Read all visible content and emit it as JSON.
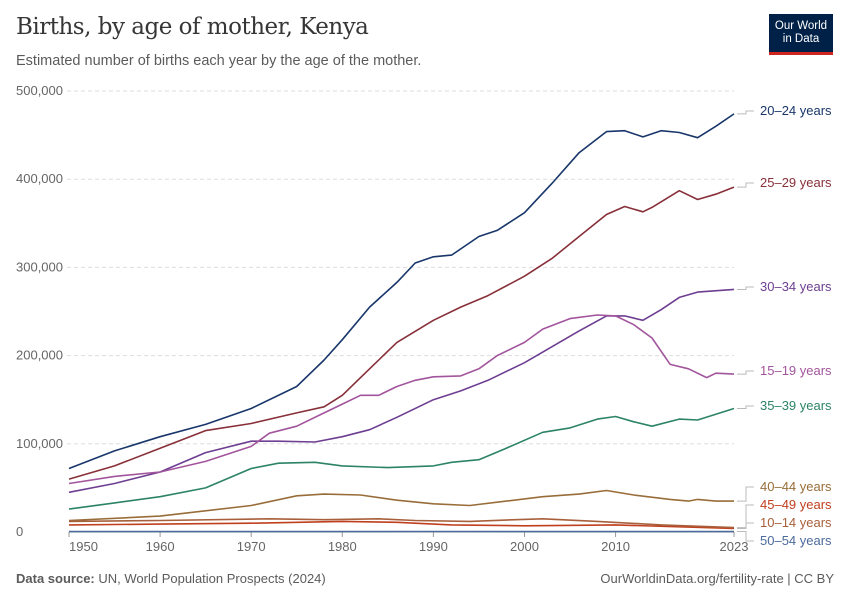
{
  "header": {
    "title": "Births, by age of mother, Kenya",
    "subtitle": "Estimated number of births each year by the age of the mother.",
    "logo_text": "Our World in Data"
  },
  "footer": {
    "source_label": "Data source:",
    "source": "UN, World Population Prospects (2024)",
    "link": "OurWorldinData.org/fertility-rate | CC BY"
  },
  "chart_data": {
    "type": "line",
    "title": "Births, by age of mother, Kenya",
    "xlim": [
      1950,
      2023
    ],
    "ylim": [
      0,
      500000
    ],
    "x_ticks": [
      "1950",
      "1960",
      "1970",
      "1980",
      "1990",
      "2000",
      "2010",
      "2023"
    ],
    "y_ticks": [
      "0",
      "100,000",
      "200,000",
      "300,000",
      "400,000",
      "500,000"
    ],
    "grid": "horizontal dashed",
    "legend": "right, labels at line ends",
    "series": [
      {
        "name": "20–24 years",
        "color": "#18366a",
        "points": [
          [
            1950,
            72000
          ],
          [
            1955,
            92000
          ],
          [
            1960,
            108000
          ],
          [
            1965,
            122000
          ],
          [
            1970,
            140000
          ],
          [
            1975,
            165000
          ],
          [
            1978,
            195000
          ],
          [
            1980,
            218000
          ],
          [
            1983,
            255000
          ],
          [
            1986,
            283000
          ],
          [
            1988,
            305000
          ],
          [
            1990,
            312000
          ],
          [
            1992,
            314000
          ],
          [
            1995,
            335000
          ],
          [
            1997,
            342000
          ],
          [
            2000,
            362000
          ],
          [
            2003,
            395000
          ],
          [
            2006,
            430000
          ],
          [
            2009,
            454000
          ],
          [
            2011,
            455000
          ],
          [
            2013,
            448000
          ],
          [
            2015,
            455000
          ],
          [
            2017,
            453000
          ],
          [
            2019,
            447000
          ],
          [
            2021,
            460000
          ],
          [
            2023,
            474000
          ]
        ]
      },
      {
        "name": "25–29 years",
        "color": "#883039",
        "points": [
          [
            1950,
            60000
          ],
          [
            1955,
            75000
          ],
          [
            1960,
            95000
          ],
          [
            1965,
            115000
          ],
          [
            1970,
            123000
          ],
          [
            1975,
            135000
          ],
          [
            1978,
            142000
          ],
          [
            1980,
            155000
          ],
          [
            1983,
            185000
          ],
          [
            1986,
            215000
          ],
          [
            1990,
            240000
          ],
          [
            1993,
            255000
          ],
          [
            1996,
            268000
          ],
          [
            2000,
            290000
          ],
          [
            2003,
            310000
          ],
          [
            2006,
            335000
          ],
          [
            2009,
            360000
          ],
          [
            2011,
            369000
          ],
          [
            2013,
            363000
          ],
          [
            2014,
            368000
          ],
          [
            2017,
            387000
          ],
          [
            2019,
            377000
          ],
          [
            2021,
            383000
          ],
          [
            2023,
            391000
          ]
        ]
      },
      {
        "name": "30–34 years",
        "color": "#6d3e91",
        "points": [
          [
            1950,
            45000
          ],
          [
            1955,
            55000
          ],
          [
            1960,
            68000
          ],
          [
            1965,
            90000
          ],
          [
            1970,
            103000
          ],
          [
            1973,
            103000
          ],
          [
            1977,
            102000
          ],
          [
            1980,
            108000
          ],
          [
            1983,
            116000
          ],
          [
            1986,
            130000
          ],
          [
            1990,
            150000
          ],
          [
            1993,
            160000
          ],
          [
            1996,
            172000
          ],
          [
            2000,
            192000
          ],
          [
            2003,
            210000
          ],
          [
            2006,
            228000
          ],
          [
            2009,
            245000
          ],
          [
            2011,
            245000
          ],
          [
            2013,
            240000
          ],
          [
            2015,
            252000
          ],
          [
            2017,
            266000
          ],
          [
            2019,
            272000
          ],
          [
            2023,
            275000
          ]
        ]
      },
      {
        "name": "15–19 years",
        "color": "#a2559c",
        "points": [
          [
            1950,
            55000
          ],
          [
            1955,
            63000
          ],
          [
            1960,
            68000
          ],
          [
            1965,
            80000
          ],
          [
            1970,
            97000
          ],
          [
            1972,
            112000
          ],
          [
            1975,
            120000
          ],
          [
            1978,
            135000
          ],
          [
            1980,
            145000
          ],
          [
            1982,
            155000
          ],
          [
            1984,
            155000
          ],
          [
            1986,
            165000
          ],
          [
            1988,
            172000
          ],
          [
            1990,
            176000
          ],
          [
            1993,
            177000
          ],
          [
            1995,
            185000
          ],
          [
            1997,
            200000
          ],
          [
            2000,
            215000
          ],
          [
            2002,
            230000
          ],
          [
            2005,
            242000
          ],
          [
            2008,
            246000
          ],
          [
            2010,
            245000
          ],
          [
            2012,
            235000
          ],
          [
            2014,
            220000
          ],
          [
            2016,
            190000
          ],
          [
            2018,
            185000
          ],
          [
            2020,
            175000
          ],
          [
            2021,
            180000
          ],
          [
            2023,
            179000
          ]
        ]
      },
      {
        "name": "35–39 years",
        "color": "#2c8465",
        "points": [
          [
            1950,
            26000
          ],
          [
            1955,
            33000
          ],
          [
            1960,
            40000
          ],
          [
            1965,
            50000
          ],
          [
            1970,
            72000
          ],
          [
            1973,
            78000
          ],
          [
            1977,
            79000
          ],
          [
            1980,
            75000
          ],
          [
            1985,
            73000
          ],
          [
            1990,
            75000
          ],
          [
            1992,
            79000
          ],
          [
            1995,
            82000
          ],
          [
            1998,
            95000
          ],
          [
            2002,
            113000
          ],
          [
            2005,
            118000
          ],
          [
            2008,
            128000
          ],
          [
            2010,
            131000
          ],
          [
            2012,
            125000
          ],
          [
            2014,
            120000
          ],
          [
            2017,
            128000
          ],
          [
            2019,
            127000
          ],
          [
            2023,
            140000
          ]
        ]
      },
      {
        "name": "40–44 years",
        "color": "#996d39",
        "points": [
          [
            1950,
            13000
          ],
          [
            1960,
            18000
          ],
          [
            1970,
            30000
          ],
          [
            1975,
            41000
          ],
          [
            1978,
            43000
          ],
          [
            1982,
            42000
          ],
          [
            1986,
            36000
          ],
          [
            1990,
            32000
          ],
          [
            1994,
            30000
          ],
          [
            1998,
            35000
          ],
          [
            2002,
            40000
          ],
          [
            2006,
            43000
          ],
          [
            2009,
            47000
          ],
          [
            2012,
            42000
          ],
          [
            2016,
            37000
          ],
          [
            2018,
            35000
          ],
          [
            2019,
            37000
          ],
          [
            2021,
            35000
          ],
          [
            2023,
            35000
          ]
        ]
      },
      {
        "name": "45–49 years",
        "color": "#c0401e",
        "points": [
          [
            1950,
            8000
          ],
          [
            1960,
            9000
          ],
          [
            1970,
            10000
          ],
          [
            1980,
            12000
          ],
          [
            1986,
            11000
          ],
          [
            1992,
            8000
          ],
          [
            2000,
            7000
          ],
          [
            2010,
            8000
          ],
          [
            2023,
            4000
          ]
        ]
      },
      {
        "name": "10–14 years",
        "color": "#a8603c",
        "points": [
          [
            1950,
            12000
          ],
          [
            1960,
            13000
          ],
          [
            1972,
            15000
          ],
          [
            1978,
            14000
          ],
          [
            1984,
            15000
          ],
          [
            1988,
            13000
          ],
          [
            1994,
            12000
          ],
          [
            1999,
            14000
          ],
          [
            2002,
            15000
          ],
          [
            2008,
            12000
          ],
          [
            2015,
            8000
          ],
          [
            2023,
            5000
          ]
        ]
      },
      {
        "name": "50–54 years",
        "color": "#4c6a9c",
        "points": [
          [
            1950,
            500
          ],
          [
            1990,
            600
          ],
          [
            2023,
            500
          ]
        ]
      }
    ]
  }
}
